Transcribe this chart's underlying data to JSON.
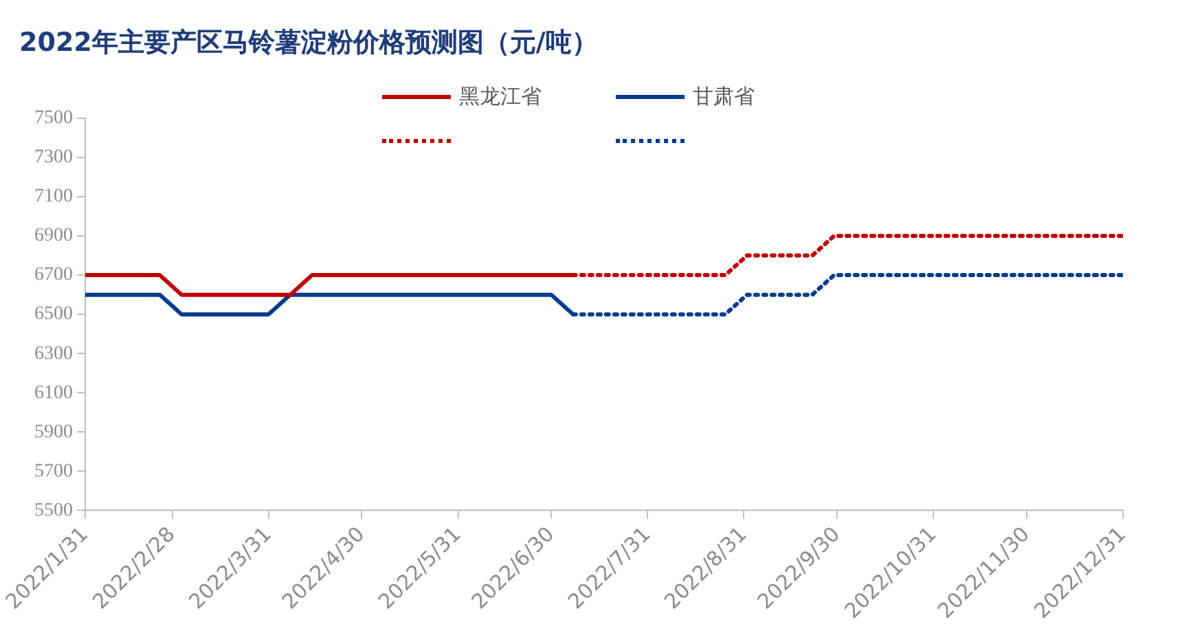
{
  "chart_data": {
    "type": "line",
    "title": "2022年主要产区马铃薯淀粉价格预测图（元/吨）",
    "legend": "top",
    "marker": "none",
    "grid": false,
    "xlim": [
      "2022-01-31",
      "2022-12-31"
    ],
    "xticks": [
      {
        "value": "2022-01-31",
        "label": "2022/1/31"
      },
      {
        "value": "2022-02-28",
        "label": "2022/2/28"
      },
      {
        "value": "2022-03-31",
        "label": "2022/3/31"
      },
      {
        "value": "2022-04-30",
        "label": "2022/4/30"
      },
      {
        "value": "2022-05-31",
        "label": "2022/5/31"
      },
      {
        "value": "2022-06-30",
        "label": "2022/6/30"
      },
      {
        "value": "2022-07-31",
        "label": "2022/7/31"
      },
      {
        "value": "2022-08-31",
        "label": "2022/8/31"
      },
      {
        "value": "2022-09-30",
        "label": "2022/9/30"
      },
      {
        "value": "2022-10-31",
        "label": "2022/10/31"
      },
      {
        "value": "2022-11-30",
        "label": "2022/11/30"
      },
      {
        "value": "2022-12-31",
        "label": "2022/12/31"
      }
    ],
    "ylim": [
      5500,
      7500
    ],
    "yticks": [
      5500,
      5700,
      5900,
      6100,
      6300,
      6500,
      6700,
      6900,
      7100,
      7300,
      7500
    ],
    "series": [
      {
        "name": "黑龙江省",
        "color": "#c00000",
        "line_style": "solid",
        "x": [
          "2022-01-31",
          "2022-02-24",
          "2022-03-03",
          "2022-04-07",
          "2022-04-14",
          "2022-07-07"
        ],
        "values": [
          6700,
          6700,
          6600,
          6600,
          6700,
          6700
        ]
      },
      {
        "name": "甘肃省",
        "color": "#003b8c",
        "line_style": "solid",
        "x": [
          "2022-01-31",
          "2022-02-24",
          "2022-03-03",
          "2022-03-31",
          "2022-04-07",
          "2022-06-30",
          "2022-07-07"
        ],
        "values": [
          6600,
          6600,
          6500,
          6500,
          6600,
          6600,
          6500
        ]
      },
      {
        "color": "#c00000",
        "line_style": "dotted",
        "x": [
          "2022-07-07",
          "2022-08-25",
          "2022-09-01",
          "2022-09-22",
          "2022-09-29",
          "2022-12-31"
        ],
        "values": [
          6700,
          6700,
          6800,
          6800,
          6900,
          6900
        ]
      },
      {
        "color": "#003b8c",
        "line_style": "dotted",
        "x": [
          "2022-07-07",
          "2022-08-25",
          "2022-09-01",
          "2022-09-22",
          "2022-09-29",
          "2022-12-31"
        ],
        "values": [
          6500,
          6500,
          6600,
          6600,
          6700,
          6700
        ]
      }
    ]
  }
}
